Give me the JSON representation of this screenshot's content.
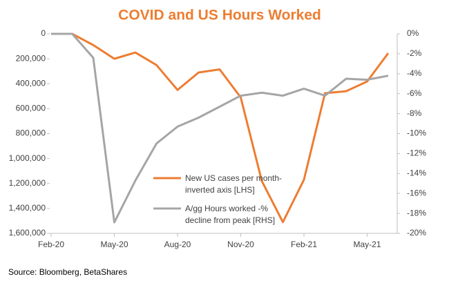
{
  "chart_data": {
    "type": "line",
    "title": "COVID and US Hours Worked",
    "source": "Source: Bloomberg, BetaShares",
    "categories": [
      "Feb-20",
      null,
      null,
      "May-20",
      null,
      null,
      "Aug-20",
      null,
      null,
      "Nov-20",
      null,
      null,
      "Feb-21",
      null,
      null,
      "May-21",
      null
    ],
    "series": [
      {
        "name": "New US cases per month-inverted axis [LHS]",
        "color": "#ED7D31",
        "values": [
          0,
          0,
          90000,
          200000,
          150000,
          250000,
          450000,
          310000,
          285000,
          510000,
          1180000,
          1510000,
          1170000,
          476000,
          460000,
          382000,
          155000
        ]
      },
      {
        "name": "A/gg Hours worked -% decline from peak [RHS]",
        "color": "#A5A5A5",
        "axis": "y2",
        "values": [
          0,
          0,
          -2.4,
          -18.9,
          -14.7,
          -11.0,
          -9.3,
          -8.4,
          -7.3,
          -6.2,
          -5.9,
          -6.2,
          -5.5,
          -6.2,
          -4.5,
          -4.6,
          -4.2
        ]
      }
    ],
    "ylim": [
      0,
      1600000
    ],
    "inverted": true,
    "yticks": [
      0,
      {
        "value": 200000,
        "label": "200,000"
      },
      {
        "value": 400000,
        "label": "400,000"
      },
      {
        "value": 600000,
        "label": "600,000"
      },
      {
        "value": 800000,
        "label": "800,000"
      },
      {
        "value": 1000000,
        "label": "1,000,000"
      },
      {
        "value": 1200000,
        "label": "1,200,000"
      },
      {
        "value": 1400000,
        "label": "1,400,000"
      },
      {
        "value": 1600000,
        "label": "1,600,000"
      }
    ],
    "y2lim": [
      0,
      -20
    ],
    "y2ticks": [
      {
        "value": 0,
        "label": "0%"
      },
      {
        "value": -2,
        "label": "-2%"
      },
      {
        "value": -4,
        "label": "-4%"
      },
      {
        "value": -6,
        "label": "-6%"
      },
      {
        "value": -8,
        "label": "-8%"
      },
      {
        "value": -10,
        "label": "-10%"
      },
      {
        "value": -12,
        "label": "-12%"
      },
      {
        "value": -14,
        "label": "-14%"
      },
      {
        "value": -16,
        "label": "-16%"
      },
      {
        "value": -18,
        "label": "-18%"
      },
      {
        "value": -20,
        "label": "-20%"
      }
    ]
  }
}
